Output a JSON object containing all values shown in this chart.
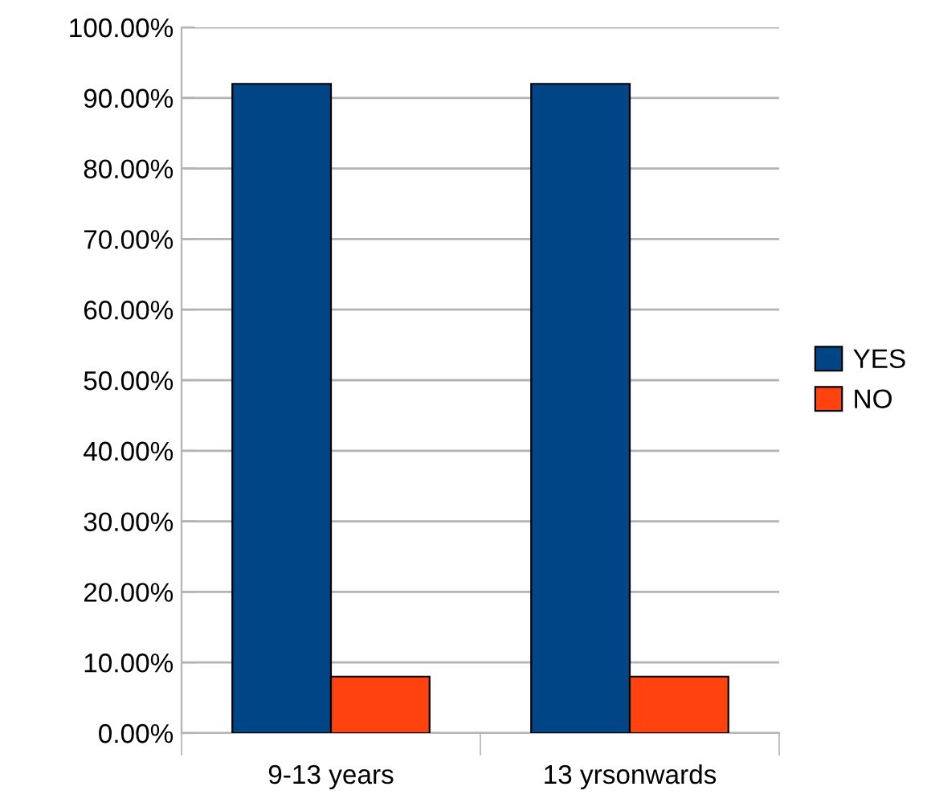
{
  "chart_data": {
    "type": "bar",
    "categories": [
      "9-13 years",
      "13 yrsonwards"
    ],
    "series": [
      {
        "name": "YES",
        "color": "#004586",
        "values": [
          92,
          92
        ]
      },
      {
        "name": "NO",
        "color": "#ff420e",
        "values": [
          8,
          8
        ]
      }
    ],
    "ylim": [
      0,
      100
    ],
    "yticks": [
      {
        "value": 0,
        "label": "0.00%"
      },
      {
        "value": 10,
        "label": "10.00%"
      },
      {
        "value": 20,
        "label": "20.00%"
      },
      {
        "value": 30,
        "label": "30.00%"
      },
      {
        "value": 40,
        "label": "40.00%"
      },
      {
        "value": 50,
        "label": "50.00%"
      },
      {
        "value": 60,
        "label": "60.00%"
      },
      {
        "value": 70,
        "label": "70.00%"
      },
      {
        "value": 80,
        "label": "80.00%"
      },
      {
        "value": 90,
        "label": "90.00%"
      },
      {
        "value": 100,
        "label": "100.00%"
      }
    ],
    "grid": "y",
    "legend": "right"
  }
}
